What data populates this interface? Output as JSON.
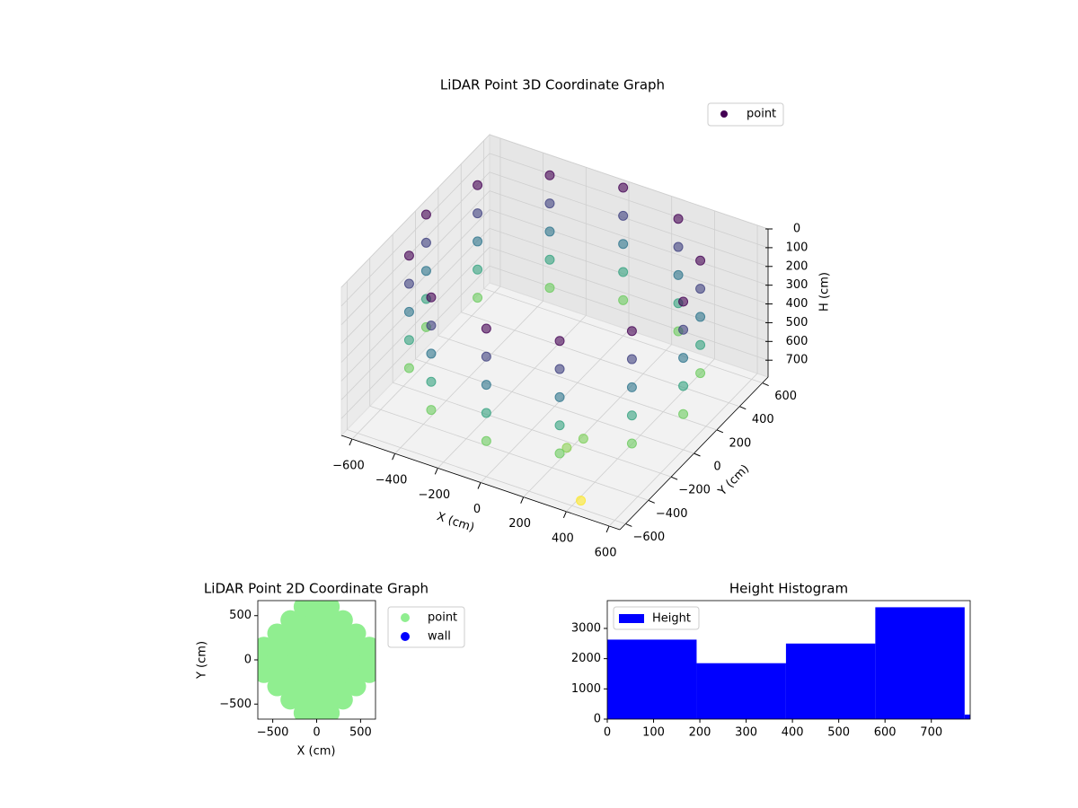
{
  "chart_data": [
    {
      "type": "scatter3d",
      "title": "LiDAR Point 3D Coordinate Graph",
      "xlabel": "X (cm)",
      "ylabel": "Y (cm)",
      "zlabel": "H (cm)",
      "xlim": [
        -650,
        650
      ],
      "ylim": [
        -650,
        650
      ],
      "zlim": [
        790,
        0
      ],
      "xticks": [
        {
          "value": -600,
          "label": "−600"
        },
        {
          "value": -400,
          "label": "−400"
        },
        {
          "value": -200,
          "label": "−200"
        },
        0,
        200,
        400,
        600
      ],
      "yticks": [
        {
          "value": -600,
          "label": "−600"
        },
        {
          "value": -400,
          "label": "−400"
        },
        {
          "value": -200,
          "label": "−200"
        },
        0,
        200,
        400,
        600
      ],
      "zticks": [
        0,
        100,
        200,
        300,
        400,
        500,
        600,
        700
      ],
      "colormap": "viridis",
      "legend": "upper right",
      "grid": true,
      "series": [
        {
          "name": "point",
          "color": "#440154",
          "x": [
            600,
            520,
            300,
            0,
            -300,
            -520,
            -600,
            -520,
            -300,
            0,
            300,
            520,
            600,
            520,
            300,
            0,
            -300,
            -520,
            -600,
            -520,
            -300,
            0,
            300,
            520,
            600,
            520,
            300,
            0,
            -300,
            -520,
            -600,
            -520,
            -300,
            0,
            300,
            520,
            600,
            520,
            300,
            0,
            -300,
            -520,
            -600,
            -520,
            -300,
            0,
            300,
            520,
            600,
            520,
            300,
            0,
            -300,
            -520,
            -600,
            -520,
            -300,
            0,
            300,
            520,
            320,
            280,
            420
          ],
          "y": [
            0,
            300,
            520,
            600,
            520,
            300,
            0,
            -300,
            -520,
            -600,
            -520,
            -300,
            0,
            300,
            520,
            600,
            520,
            300,
            0,
            -300,
            -520,
            -600,
            -520,
            -300,
            0,
            300,
            520,
            600,
            520,
            300,
            0,
            -300,
            -520,
            -600,
            -520,
            -300,
            0,
            300,
            520,
            600,
            520,
            300,
            0,
            -300,
            -520,
            -600,
            -520,
            -300,
            0,
            300,
            520,
            600,
            520,
            300,
            0,
            -300,
            -520,
            -600,
            -520,
            -300,
            -350,
            -420,
            -560
          ],
          "z": [
            0,
            0,
            0,
            0,
            0,
            0,
            0,
            0,
            0,
            0,
            0,
            0,
            150,
            150,
            150,
            150,
            150,
            150,
            150,
            150,
            150,
            150,
            150,
            150,
            300,
            300,
            300,
            300,
            300,
            300,
            300,
            300,
            300,
            300,
            300,
            300,
            450,
            450,
            450,
            450,
            450,
            450,
            450,
            450,
            450,
            450,
            450,
            450,
            600,
            600,
            600,
            600,
            600,
            600,
            600,
            600,
            600,
            600,
            600,
            600,
            620,
            640,
            780
          ]
        }
      ]
    },
    {
      "type": "scatter",
      "title": "LiDAR Point 2D Coordinate Graph",
      "xlabel": "X (cm)",
      "ylabel": "Y (cm)",
      "xlim": [
        -670,
        670
      ],
      "ylim": [
        -670,
        670
      ],
      "xticks": [
        {
          "value": -500,
          "label": "−500"
        },
        0,
        500
      ],
      "yticks": [
        {
          "value": -500,
          "label": "−500"
        },
        0,
        500
      ],
      "legend": "outside right",
      "series": [
        {
          "name": "point",
          "color": "#90ee90",
          "x": [
            -150,
            0,
            150,
            -300,
            -150,
            0,
            150,
            300,
            -450,
            -300,
            -150,
            0,
            150,
            300,
            450,
            -600,
            -450,
            -300,
            -150,
            0,
            150,
            300,
            450,
            600,
            -600,
            -450,
            -300,
            -150,
            0,
            150,
            300,
            450,
            600,
            -600,
            -450,
            -300,
            -150,
            0,
            150,
            300,
            450,
            600,
            -450,
            -300,
            -150,
            0,
            150,
            300,
            450,
            -300,
            -150,
            0,
            150,
            300,
            -150,
            0,
            150
          ],
          "y": [
            -600,
            -600,
            -600,
            -450,
            -450,
            -450,
            -450,
            -450,
            -300,
            -300,
            -300,
            -300,
            -300,
            -300,
            -300,
            -150,
            -150,
            -150,
            -150,
            -150,
            -150,
            -150,
            -150,
            -150,
            0,
            0,
            0,
            0,
            0,
            0,
            0,
            0,
            0,
            150,
            150,
            150,
            150,
            150,
            150,
            150,
            150,
            150,
            300,
            300,
            300,
            300,
            300,
            300,
            300,
            450,
            450,
            450,
            450,
            450,
            600,
            600,
            600
          ]
        },
        {
          "name": "wall",
          "color": "#0000ff",
          "x": [],
          "y": []
        }
      ]
    },
    {
      "type": "histogram",
      "title": "Height Histogram",
      "bins": [
        0,
        193,
        386,
        579,
        772,
        784
      ],
      "xlim": [
        0,
        784
      ],
      "ylim": [
        0,
        3920
      ],
      "xticks": [
        0,
        100,
        200,
        300,
        400,
        500,
        600,
        700
      ],
      "yticks": [
        0,
        1000,
        2000,
        3000
      ],
      "legend": "upper left",
      "series": [
        {
          "name": "Height",
          "color": "#0000ff",
          "values": [
            2630,
            1850,
            2500,
            3700,
            150
          ]
        }
      ]
    }
  ]
}
